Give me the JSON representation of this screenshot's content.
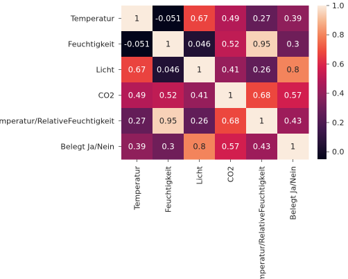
{
  "chart_data": {
    "type": "heatmap",
    "title": "",
    "xlabel": "",
    "ylabel": "",
    "rows": [
      "Temperatur",
      "Feuchtigkeit",
      "Licht",
      "CO2",
      "Temperatur/RelativeFeuchtigkeit",
      "Belegt Ja/Nein"
    ],
    "columns": [
      "Temperatur",
      "Feuchtigkeit",
      "Licht",
      "CO2",
      "Temperatur/RelativeFeuchtigkeit",
      "Belegt Ja/Nein"
    ],
    "values": [
      [
        1,
        -0.051,
        0.67,
        0.49,
        0.27,
        0.39
      ],
      [
        -0.051,
        1,
        0.046,
        0.52,
        0.95,
        0.3
      ],
      [
        0.67,
        0.046,
        1,
        0.41,
        0.26,
        0.8
      ],
      [
        0.49,
        0.52,
        0.41,
        1,
        0.68,
        0.57
      ],
      [
        0.27,
        0.95,
        0.26,
        0.68,
        1,
        0.43
      ],
      [
        0.39,
        0.3,
        0.8,
        0.57,
        0.43,
        1
      ]
    ],
    "annotations": [
      [
        "1",
        "-0.051",
        "0.67",
        "0.49",
        "0.27",
        "0.39"
      ],
      [
        "-0.051",
        "1",
        "0.046",
        "0.52",
        "0.95",
        "0.3"
      ],
      [
        "0.67",
        "0.046",
        "1",
        "0.41",
        "0.26",
        "0.8"
      ],
      [
        "0.49",
        "0.52",
        "0.41",
        "1",
        "0.68",
        "0.57"
      ],
      [
        "0.27",
        "0.95",
        "0.26",
        "0.68",
        "1",
        "0.43"
      ],
      [
        "0.39",
        "0.3",
        "0.8",
        "0.57",
        "0.43",
        "1"
      ]
    ],
    "colorscale": "rocket",
    "vmin": -0.051,
    "vmax": 1,
    "colorbar_ticks": [
      "0.0",
      "0.2",
      "0.4",
      "0.6",
      "0.8",
      "1.0"
    ],
    "grid": false,
    "colorbar_position": "right"
  }
}
